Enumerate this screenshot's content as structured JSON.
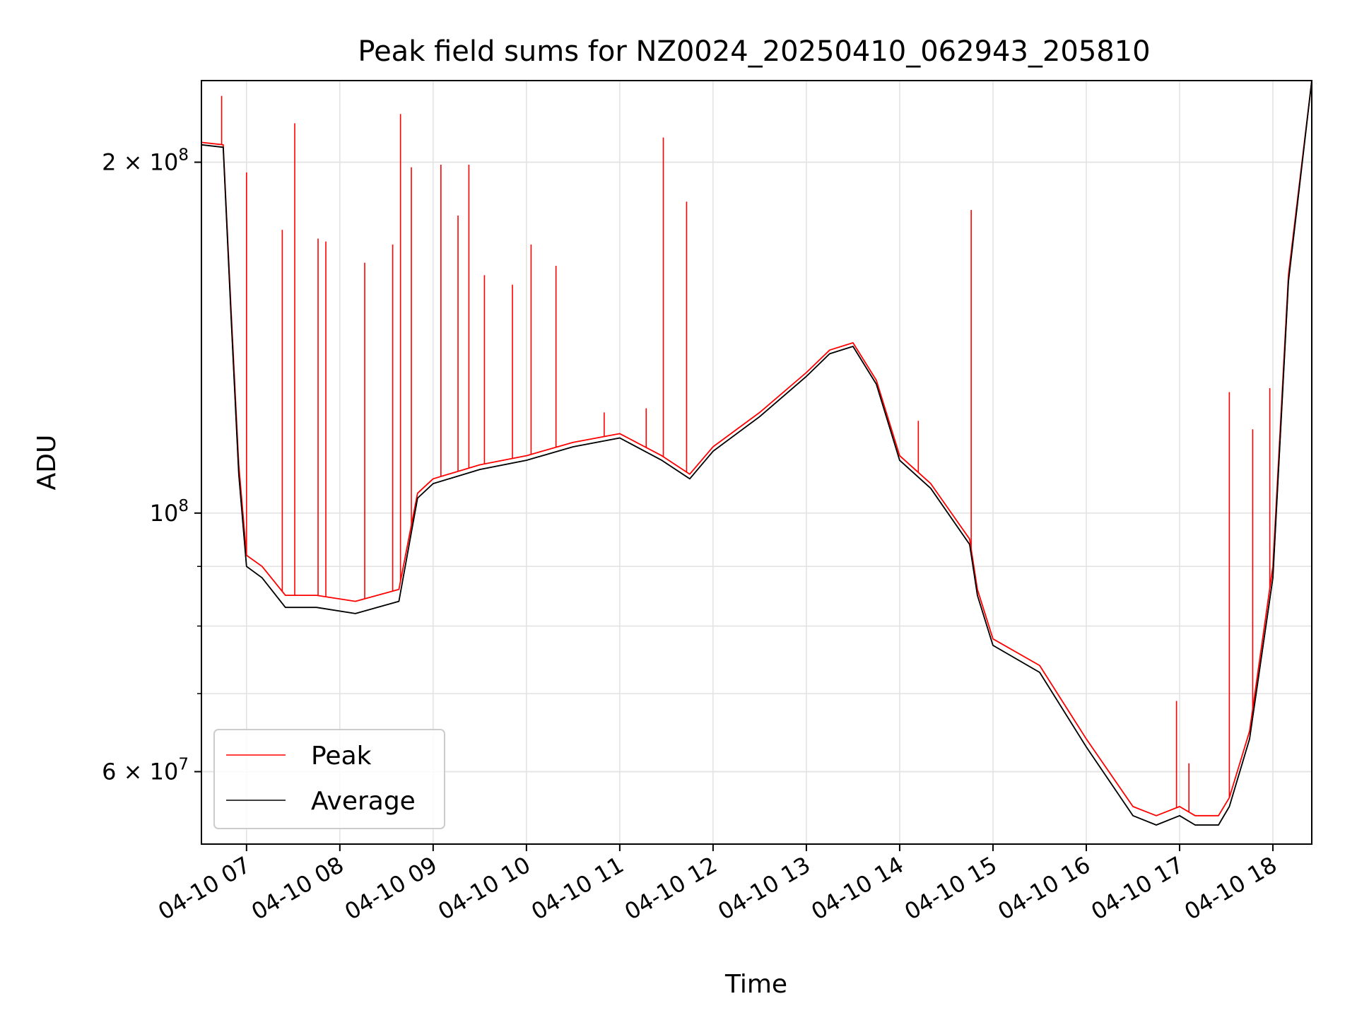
{
  "chart_data": {
    "type": "line",
    "title": "Peak field sums for NZ0024_20250410_062943_205810",
    "xlabel": "Time",
    "ylabel": "ADU",
    "y_scale": "log",
    "xlim": [
      "2025-04-10 06:31",
      "2025-04-10 18:25"
    ],
    "ylim": [
      52000000,
      235000000
    ],
    "grid": true,
    "legend_position": "lower-left",
    "x_ticks": [
      "04-10 07",
      "04-10 08",
      "04-10 09",
      "04-10 10",
      "04-10 11",
      "04-10 12",
      "04-10 13",
      "04-10 14",
      "04-10 15",
      "04-10 16",
      "04-10 17",
      "04-10 18"
    ],
    "x_tick_times": [
      "2025-04-10 07:00",
      "2025-04-10 08:00",
      "2025-04-10 09:00",
      "2025-04-10 10:00",
      "2025-04-10 11:00",
      "2025-04-10 12:00",
      "2025-04-10 13:00",
      "2025-04-10 14:00",
      "2025-04-10 15:00",
      "2025-04-10 16:00",
      "2025-04-10 17:00",
      "2025-04-10 18:00"
    ],
    "y_major_ticks": [
      {
        "value": 200000000,
        "mantissa": "2",
        "exponent": "8"
      },
      {
        "value": 100000000,
        "mantissa": "",
        "exponent": "8"
      },
      {
        "value": 60000000,
        "mantissa": "6",
        "exponent": "7"
      }
    ],
    "y_minor_ticks": [
      60000000,
      70000000,
      80000000,
      90000000,
      200000000
    ],
    "series": [
      {
        "name": "Peak",
        "color": "#ff0000",
        "x": [
          "2025-04-10 06:31",
          "2025-04-10 06:45",
          "2025-04-10 06:50",
          "2025-04-10 06:55",
          "2025-04-10 07:00",
          "2025-04-10 07:10",
          "2025-04-10 07:25",
          "2025-04-10 07:45",
          "2025-04-10 08:10",
          "2025-04-10 08:38",
          "2025-04-10 08:50",
          "2025-04-10 09:00",
          "2025-04-10 09:30",
          "2025-04-10 10:00",
          "2025-04-10 10:30",
          "2025-04-10 11:00",
          "2025-04-10 11:27",
          "2025-04-10 11:45",
          "2025-04-10 12:00",
          "2025-04-10 12:30",
          "2025-04-10 13:00",
          "2025-04-10 13:15",
          "2025-04-10 13:30",
          "2025-04-10 13:45",
          "2025-04-10 14:00",
          "2025-04-10 14:20",
          "2025-04-10 14:45",
          "2025-04-10 14:50",
          "2025-04-10 15:00",
          "2025-04-10 15:30",
          "2025-04-10 16:00",
          "2025-04-10 16:30",
          "2025-04-10 16:45",
          "2025-04-10 17:00",
          "2025-04-10 17:10",
          "2025-04-10 17:25",
          "2025-04-10 17:32",
          "2025-04-10 17:45",
          "2025-04-10 18:00",
          "2025-04-10 18:10",
          "2025-04-10 18:25"
        ],
        "y": [
          208000000,
          207000000,
          150000000,
          110000000,
          92000000,
          90000000,
          85000000,
          85000000,
          84000000,
          86000000,
          104000000,
          107000000,
          110000000,
          112000000,
          115000000,
          117000000,
          112000000,
          108000000,
          114000000,
          122000000,
          132000000,
          138000000,
          140000000,
          130000000,
          112000000,
          106000000,
          95000000,
          86000000,
          78000000,
          74000000,
          64000000,
          56000000,
          55000000,
          56000000,
          55000000,
          55000000,
          57000000,
          65000000,
          90000000,
          160000000,
          235000000
        ],
        "spikes": [
          {
            "x": "2025-04-10 06:44",
            "y": 228000000
          },
          {
            "x": "2025-04-10 07:00",
            "y": 196000000
          },
          {
            "x": "2025-04-10 07:23",
            "y": 175000000
          },
          {
            "x": "2025-04-10 07:31",
            "y": 216000000
          },
          {
            "x": "2025-04-10 07:46",
            "y": 172000000
          },
          {
            "x": "2025-04-10 07:51",
            "y": 171000000
          },
          {
            "x": "2025-04-10 08:16",
            "y": 164000000
          },
          {
            "x": "2025-04-10 08:34",
            "y": 170000000
          },
          {
            "x": "2025-04-10 08:39",
            "y": 220000000
          },
          {
            "x": "2025-04-10 08:46",
            "y": 198000000
          },
          {
            "x": "2025-04-10 09:05",
            "y": 199000000
          },
          {
            "x": "2025-04-10 09:16",
            "y": 180000000
          },
          {
            "x": "2025-04-10 09:23",
            "y": 199000000
          },
          {
            "x": "2025-04-10 09:33",
            "y": 160000000
          },
          {
            "x": "2025-04-10 09:51",
            "y": 157000000
          },
          {
            "x": "2025-04-10 10:03",
            "y": 170000000
          },
          {
            "x": "2025-04-10 10:19",
            "y": 163000000
          },
          {
            "x": "2025-04-10 10:50",
            "y": 122000000
          },
          {
            "x": "2025-04-10 11:17",
            "y": 123000000
          },
          {
            "x": "2025-04-10 11:28",
            "y": 210000000
          },
          {
            "x": "2025-04-10 11:43",
            "y": 185000000
          },
          {
            "x": "2025-04-10 14:12",
            "y": 120000000
          },
          {
            "x": "2025-04-10 14:46",
            "y": 182000000
          },
          {
            "x": "2025-04-10 16:58",
            "y": 69000000
          },
          {
            "x": "2025-04-10 17:06",
            "y": 61000000
          },
          {
            "x": "2025-04-10 17:32",
            "y": 127000000
          },
          {
            "x": "2025-04-10 17:47",
            "y": 118000000
          },
          {
            "x": "2025-04-10 17:58",
            "y": 128000000
          }
        ]
      },
      {
        "name": "Average",
        "color": "#000000",
        "x": [
          "2025-04-10 06:31",
          "2025-04-10 06:45",
          "2025-04-10 06:50",
          "2025-04-10 06:55",
          "2025-04-10 07:00",
          "2025-04-10 07:10",
          "2025-04-10 07:25",
          "2025-04-10 07:45",
          "2025-04-10 08:10",
          "2025-04-10 08:38",
          "2025-04-10 08:50",
          "2025-04-10 09:00",
          "2025-04-10 09:30",
          "2025-04-10 10:00",
          "2025-04-10 10:30",
          "2025-04-10 11:00",
          "2025-04-10 11:27",
          "2025-04-10 11:45",
          "2025-04-10 12:00",
          "2025-04-10 12:30",
          "2025-04-10 13:00",
          "2025-04-10 13:15",
          "2025-04-10 13:30",
          "2025-04-10 13:45",
          "2025-04-10 14:00",
          "2025-04-10 14:20",
          "2025-04-10 14:45",
          "2025-04-10 14:50",
          "2025-04-10 15:00",
          "2025-04-10 15:30",
          "2025-04-10 16:00",
          "2025-04-10 16:30",
          "2025-04-10 16:45",
          "2025-04-10 17:00",
          "2025-04-10 17:10",
          "2025-04-10 17:25",
          "2025-04-10 17:32",
          "2025-04-10 17:45",
          "2025-04-10 18:00",
          "2025-04-10 18:10",
          "2025-04-10 18:25"
        ],
        "y": [
          207000000,
          206000000,
          148000000,
          108000000,
          90000000,
          88000000,
          83000000,
          83000000,
          82000000,
          84000000,
          103000000,
          106000000,
          109000000,
          111000000,
          114000000,
          116000000,
          111000000,
          107000000,
          113000000,
          121000000,
          131000000,
          137000000,
          139000000,
          129000000,
          111000000,
          105000000,
          94000000,
          85000000,
          77000000,
          73000000,
          63000000,
          55000000,
          54000000,
          55000000,
          54000000,
          54000000,
          56000000,
          64000000,
          88000000,
          158000000,
          235000000
        ]
      }
    ]
  }
}
